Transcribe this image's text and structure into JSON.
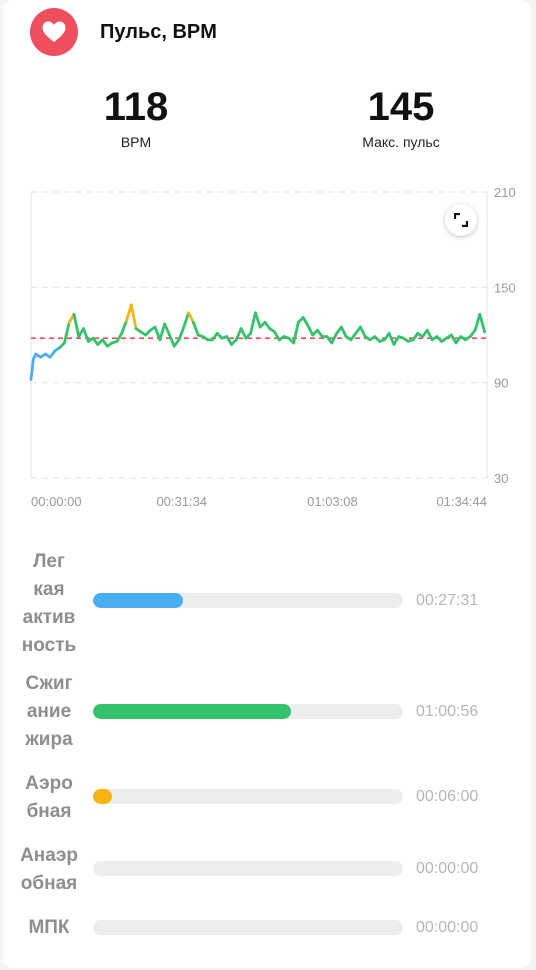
{
  "header": {
    "title": "Пульс, BPM",
    "icon": "heart-icon",
    "accent": "#ee4f5c"
  },
  "stats": [
    {
      "value": "118",
      "label": "BPM"
    },
    {
      "value": "145",
      "label": "Макс. пульс"
    }
  ],
  "chart_data": {
    "type": "line",
    "y_ticks": [
      210,
      150,
      90,
      30
    ],
    "ylim": [
      30,
      210
    ],
    "x_tick_labels": [
      "00:00:00",
      "00:31:34",
      "01:03:08",
      "01:34:44"
    ],
    "x_tick_positions_min": [
      0,
      31.57,
      63.13,
      94.73
    ],
    "xlim_min": [
      0,
      95.5
    ],
    "average_line": 118,
    "zone_colors": {
      "light": "#4aaef2",
      "fatburn": "#34c26b",
      "aerobic": "#f7b515"
    },
    "series": [
      {
        "x_min": [
          0,
          0.5,
          1,
          1.5,
          2,
          3,
          4,
          5,
          6,
          7,
          8,
          9,
          10,
          11,
          12,
          13,
          14,
          15,
          16,
          17,
          18,
          19,
          20,
          21,
          22,
          23,
          24,
          25,
          26,
          27,
          28,
          29,
          30,
          31,
          32,
          33,
          34,
          35,
          36,
          37,
          38,
          39,
          40,
          41,
          42,
          43,
          44,
          45,
          46,
          47,
          48,
          49,
          50,
          51,
          52,
          53,
          54,
          55,
          56,
          57,
          58,
          59,
          60,
          61,
          62,
          63,
          64,
          65,
          66,
          67,
          68,
          69,
          70,
          71,
          72,
          73,
          74,
          75,
          76,
          77,
          78,
          79,
          80,
          81,
          82,
          83,
          84,
          85,
          86,
          87,
          88,
          89,
          90,
          91,
          92,
          93,
          94,
          95
        ],
        "y_bpm": [
          92,
          105,
          108,
          107,
          106,
          108,
          106,
          110,
          112,
          115,
          128,
          133,
          119,
          124,
          116,
          118,
          114,
          117,
          113,
          115,
          116,
          121,
          129,
          139,
          124,
          122,
          120,
          123,
          125,
          117,
          127,
          120,
          113,
          117,
          125,
          134,
          128,
          120,
          119,
          117,
          117,
          121,
          118,
          119,
          114,
          117,
          124,
          118,
          121,
          134,
          125,
          128,
          124,
          122,
          117,
          119,
          118,
          115,
          128,
          131,
          126,
          120,
          123,
          119,
          119,
          115,
          121,
          125,
          119,
          117,
          121,
          125,
          119,
          117,
          119,
          116,
          117,
          121,
          114,
          119,
          118,
          116,
          117,
          121,
          119,
          123,
          117,
          119,
          116,
          118,
          120,
          115,
          119,
          117,
          119,
          123,
          133,
          122
        ]
      }
    ]
  },
  "zones": [
    {
      "name": "Лег\nкая\nактив\nность",
      "time": "00:27:31",
      "fraction": 0.29,
      "color": "#4aaef2"
    },
    {
      "name": "Сжиг\nание\nжира",
      "time": "01:00:56",
      "fraction": 0.64,
      "color": "#34c26b"
    },
    {
      "name": "Аэро\nбная",
      "time": "00:06:00",
      "fraction": 0.06,
      "color": "#f7b515"
    },
    {
      "name": "Анаэр\nобная",
      "time": "00:00:00",
      "fraction": 0,
      "color": "#ee4f5c"
    },
    {
      "name": "МПК",
      "time": "00:00:00",
      "fraction": 0,
      "color": "#9b59b6"
    }
  ]
}
